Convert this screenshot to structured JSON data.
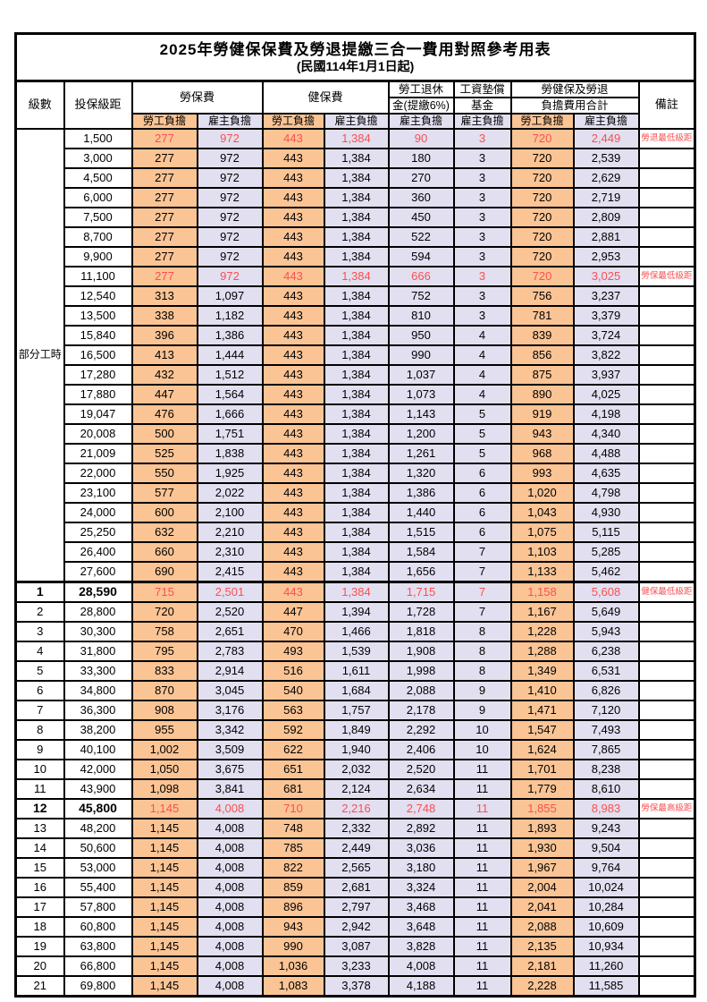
{
  "title": "2025年勞健保保費及勞退提繳三合一費用對照參考用表",
  "subtitle": "(民國114年1月1日起)",
  "header": {
    "level": "級數",
    "bracket": "投保級距",
    "labor_fee": "勞保費",
    "health_fee": "健保費",
    "pension_line1": "勞工退休",
    "pension_line2": "金(提繳6%)",
    "fund_line1": "工資墊償",
    "fund_line2": "基金",
    "total_line1": "勞健保及勞退",
    "total_line2": "負擔費用合計",
    "remark": "備註",
    "employee": "勞工負擔",
    "employer": "雇主負擔"
  },
  "part_time_label": "部分工時",
  "part_time_row_count": 23,
  "colors": {
    "employee_bg": "#FAC495",
    "employer_bg": "#E2DFF0",
    "highlight_text": "#FA5050",
    "border": "#000000"
  },
  "rows": [
    {
      "level": "",
      "bracket": "1,500",
      "labor_emp": "277",
      "labor_er": "972",
      "health_emp": "443",
      "health_er": "1,384",
      "pension": "90",
      "fund": "3",
      "total_emp": "720",
      "total_er": "2,449",
      "remark": "勞退最低級距",
      "highlight": true,
      "bold": false
    },
    {
      "level": "",
      "bracket": "3,000",
      "labor_emp": "277",
      "labor_er": "972",
      "health_emp": "443",
      "health_er": "1,384",
      "pension": "180",
      "fund": "3",
      "total_emp": "720",
      "total_er": "2,539",
      "remark": "",
      "highlight": false,
      "bold": false
    },
    {
      "level": "",
      "bracket": "4,500",
      "labor_emp": "277",
      "labor_er": "972",
      "health_emp": "443",
      "health_er": "1,384",
      "pension": "270",
      "fund": "3",
      "total_emp": "720",
      "total_er": "2,629",
      "remark": "",
      "highlight": false,
      "bold": false
    },
    {
      "level": "",
      "bracket": "6,000",
      "labor_emp": "277",
      "labor_er": "972",
      "health_emp": "443",
      "health_er": "1,384",
      "pension": "360",
      "fund": "3",
      "total_emp": "720",
      "total_er": "2,719",
      "remark": "",
      "highlight": false,
      "bold": false
    },
    {
      "level": "",
      "bracket": "7,500",
      "labor_emp": "277",
      "labor_er": "972",
      "health_emp": "443",
      "health_er": "1,384",
      "pension": "450",
      "fund": "3",
      "total_emp": "720",
      "total_er": "2,809",
      "remark": "",
      "highlight": false,
      "bold": false
    },
    {
      "level": "",
      "bracket": "8,700",
      "labor_emp": "277",
      "labor_er": "972",
      "health_emp": "443",
      "health_er": "1,384",
      "pension": "522",
      "fund": "3",
      "total_emp": "720",
      "total_er": "2,881",
      "remark": "",
      "highlight": false,
      "bold": false
    },
    {
      "level": "",
      "bracket": "9,900",
      "labor_emp": "277",
      "labor_er": "972",
      "health_emp": "443",
      "health_er": "1,384",
      "pension": "594",
      "fund": "3",
      "total_emp": "720",
      "total_er": "2,953",
      "remark": "",
      "highlight": false,
      "bold": false
    },
    {
      "level": "",
      "bracket": "11,100",
      "labor_emp": "277",
      "labor_er": "972",
      "health_emp": "443",
      "health_er": "1,384",
      "pension": "666",
      "fund": "3",
      "total_emp": "720",
      "total_er": "3,025",
      "remark": "勞保最低級距",
      "highlight": true,
      "bold": false
    },
    {
      "level": "",
      "bracket": "12,540",
      "labor_emp": "313",
      "labor_er": "1,097",
      "health_emp": "443",
      "health_er": "1,384",
      "pension": "752",
      "fund": "3",
      "total_emp": "756",
      "total_er": "3,237",
      "remark": "",
      "highlight": false,
      "bold": false
    },
    {
      "level": "",
      "bracket": "13,500",
      "labor_emp": "338",
      "labor_er": "1,182",
      "health_emp": "443",
      "health_er": "1,384",
      "pension": "810",
      "fund": "3",
      "total_emp": "781",
      "total_er": "3,379",
      "remark": "",
      "highlight": false,
      "bold": false
    },
    {
      "level": "",
      "bracket": "15,840",
      "labor_emp": "396",
      "labor_er": "1,386",
      "health_emp": "443",
      "health_er": "1,384",
      "pension": "950",
      "fund": "4",
      "total_emp": "839",
      "total_er": "3,724",
      "remark": "",
      "highlight": false,
      "bold": false
    },
    {
      "level": "",
      "bracket": "16,500",
      "labor_emp": "413",
      "labor_er": "1,444",
      "health_emp": "443",
      "health_er": "1,384",
      "pension": "990",
      "fund": "4",
      "total_emp": "856",
      "total_er": "3,822",
      "remark": "",
      "highlight": false,
      "bold": false
    },
    {
      "level": "",
      "bracket": "17,280",
      "labor_emp": "432",
      "labor_er": "1,512",
      "health_emp": "443",
      "health_er": "1,384",
      "pension": "1,037",
      "fund": "4",
      "total_emp": "875",
      "total_er": "3,937",
      "remark": "",
      "highlight": false,
      "bold": false
    },
    {
      "level": "",
      "bracket": "17,880",
      "labor_emp": "447",
      "labor_er": "1,564",
      "health_emp": "443",
      "health_er": "1,384",
      "pension": "1,073",
      "fund": "4",
      "total_emp": "890",
      "total_er": "4,025",
      "remark": "",
      "highlight": false,
      "bold": false
    },
    {
      "level": "",
      "bracket": "19,047",
      "labor_emp": "476",
      "labor_er": "1,666",
      "health_emp": "443",
      "health_er": "1,384",
      "pension": "1,143",
      "fund": "5",
      "total_emp": "919",
      "total_er": "4,198",
      "remark": "",
      "highlight": false,
      "bold": false
    },
    {
      "level": "",
      "bracket": "20,008",
      "labor_emp": "500",
      "labor_er": "1,751",
      "health_emp": "443",
      "health_er": "1,384",
      "pension": "1,200",
      "fund": "5",
      "total_emp": "943",
      "total_er": "4,340",
      "remark": "",
      "highlight": false,
      "bold": false
    },
    {
      "level": "",
      "bracket": "21,009",
      "labor_emp": "525",
      "labor_er": "1,838",
      "health_emp": "443",
      "health_er": "1,384",
      "pension": "1,261",
      "fund": "5",
      "total_emp": "968",
      "total_er": "4,488",
      "remark": "",
      "highlight": false,
      "bold": false
    },
    {
      "level": "",
      "bracket": "22,000",
      "labor_emp": "550",
      "labor_er": "1,925",
      "health_emp": "443",
      "health_er": "1,384",
      "pension": "1,320",
      "fund": "6",
      "total_emp": "993",
      "total_er": "4,635",
      "remark": "",
      "highlight": false,
      "bold": false
    },
    {
      "level": "",
      "bracket": "23,100",
      "labor_emp": "577",
      "labor_er": "2,022",
      "health_emp": "443",
      "health_er": "1,384",
      "pension": "1,386",
      "fund": "6",
      "total_emp": "1,020",
      "total_er": "4,798",
      "remark": "",
      "highlight": false,
      "bold": false
    },
    {
      "level": "",
      "bracket": "24,000",
      "labor_emp": "600",
      "labor_er": "2,100",
      "health_emp": "443",
      "health_er": "1,384",
      "pension": "1,440",
      "fund": "6",
      "total_emp": "1,043",
      "total_er": "4,930",
      "remark": "",
      "highlight": false,
      "bold": false
    },
    {
      "level": "",
      "bracket": "25,250",
      "labor_emp": "632",
      "labor_er": "2,210",
      "health_emp": "443",
      "health_er": "1,384",
      "pension": "1,515",
      "fund": "6",
      "total_emp": "1,075",
      "total_er": "5,115",
      "remark": "",
      "highlight": false,
      "bold": false
    },
    {
      "level": "",
      "bracket": "26,400",
      "labor_emp": "660",
      "labor_er": "2,310",
      "health_emp": "443",
      "health_er": "1,384",
      "pension": "1,584",
      "fund": "7",
      "total_emp": "1,103",
      "total_er": "5,285",
      "remark": "",
      "highlight": false,
      "bold": false
    },
    {
      "level": "",
      "bracket": "27,600",
      "labor_emp": "690",
      "labor_er": "2,415",
      "health_emp": "443",
      "health_er": "1,384",
      "pension": "1,656",
      "fund": "7",
      "total_emp": "1,133",
      "total_er": "5,462",
      "remark": "",
      "highlight": false,
      "bold": false
    },
    {
      "level": "1",
      "bracket": "28,590",
      "labor_emp": "715",
      "labor_er": "2,501",
      "health_emp": "443",
      "health_er": "1,384",
      "pension": "1,715",
      "fund": "7",
      "total_emp": "1,158",
      "total_er": "5,608",
      "remark": "健保最低級距",
      "highlight": true,
      "bold": true
    },
    {
      "level": "2",
      "bracket": "28,800",
      "labor_emp": "720",
      "labor_er": "2,520",
      "health_emp": "447",
      "health_er": "1,394",
      "pension": "1,728",
      "fund": "7",
      "total_emp": "1,167",
      "total_er": "5,649",
      "remark": "",
      "highlight": false,
      "bold": false
    },
    {
      "level": "3",
      "bracket": "30,300",
      "labor_emp": "758",
      "labor_er": "2,651",
      "health_emp": "470",
      "health_er": "1,466",
      "pension": "1,818",
      "fund": "8",
      "total_emp": "1,228",
      "total_er": "5,943",
      "remark": "",
      "highlight": false,
      "bold": false
    },
    {
      "level": "4",
      "bracket": "31,800",
      "labor_emp": "795",
      "labor_er": "2,783",
      "health_emp": "493",
      "health_er": "1,539",
      "pension": "1,908",
      "fund": "8",
      "total_emp": "1,288",
      "total_er": "6,238",
      "remark": "",
      "highlight": false,
      "bold": false
    },
    {
      "level": "5",
      "bracket": "33,300",
      "labor_emp": "833",
      "labor_er": "2,914",
      "health_emp": "516",
      "health_er": "1,611",
      "pension": "1,998",
      "fund": "8",
      "total_emp": "1,349",
      "total_er": "6,531",
      "remark": "",
      "highlight": false,
      "bold": false
    },
    {
      "level": "6",
      "bracket": "34,800",
      "labor_emp": "870",
      "labor_er": "3,045",
      "health_emp": "540",
      "health_er": "1,684",
      "pension": "2,088",
      "fund": "9",
      "total_emp": "1,410",
      "total_er": "6,826",
      "remark": "",
      "highlight": false,
      "bold": false
    },
    {
      "level": "7",
      "bracket": "36,300",
      "labor_emp": "908",
      "labor_er": "3,176",
      "health_emp": "563",
      "health_er": "1,757",
      "pension": "2,178",
      "fund": "9",
      "total_emp": "1,471",
      "total_er": "7,120",
      "remark": "",
      "highlight": false,
      "bold": false
    },
    {
      "level": "8",
      "bracket": "38,200",
      "labor_emp": "955",
      "labor_er": "3,342",
      "health_emp": "592",
      "health_er": "1,849",
      "pension": "2,292",
      "fund": "10",
      "total_emp": "1,547",
      "total_er": "7,493",
      "remark": "",
      "highlight": false,
      "bold": false
    },
    {
      "level": "9",
      "bracket": "40,100",
      "labor_emp": "1,002",
      "labor_er": "3,509",
      "health_emp": "622",
      "health_er": "1,940",
      "pension": "2,406",
      "fund": "10",
      "total_emp": "1,624",
      "total_er": "7,865",
      "remark": "",
      "highlight": false,
      "bold": false
    },
    {
      "level": "10",
      "bracket": "42,000",
      "labor_emp": "1,050",
      "labor_er": "3,675",
      "health_emp": "651",
      "health_er": "2,032",
      "pension": "2,520",
      "fund": "11",
      "total_emp": "1,701",
      "total_er": "8,238",
      "remark": "",
      "highlight": false,
      "bold": false
    },
    {
      "level": "11",
      "bracket": "43,900",
      "labor_emp": "1,098",
      "labor_er": "3,841",
      "health_emp": "681",
      "health_er": "2,124",
      "pension": "2,634",
      "fund": "11",
      "total_emp": "1,779",
      "total_er": "8,610",
      "remark": "",
      "highlight": false,
      "bold": false
    },
    {
      "level": "12",
      "bracket": "45,800",
      "labor_emp": "1,145",
      "labor_er": "4,008",
      "health_emp": "710",
      "health_er": "2,216",
      "pension": "2,748",
      "fund": "11",
      "total_emp": "1,855",
      "total_er": "8,983",
      "remark": "勞保最高級距",
      "highlight": true,
      "bold": true
    },
    {
      "level": "13",
      "bracket": "48,200",
      "labor_emp": "1,145",
      "labor_er": "4,008",
      "health_emp": "748",
      "health_er": "2,332",
      "pension": "2,892",
      "fund": "11",
      "total_emp": "1,893",
      "total_er": "9,243",
      "remark": "",
      "highlight": false,
      "bold": false
    },
    {
      "level": "14",
      "bracket": "50,600",
      "labor_emp": "1,145",
      "labor_er": "4,008",
      "health_emp": "785",
      "health_er": "2,449",
      "pension": "3,036",
      "fund": "11",
      "total_emp": "1,930",
      "total_er": "9,504",
      "remark": "",
      "highlight": false,
      "bold": false
    },
    {
      "level": "15",
      "bracket": "53,000",
      "labor_emp": "1,145",
      "labor_er": "4,008",
      "health_emp": "822",
      "health_er": "2,565",
      "pension": "3,180",
      "fund": "11",
      "total_emp": "1,967",
      "total_er": "9,764",
      "remark": "",
      "highlight": false,
      "bold": false
    },
    {
      "level": "16",
      "bracket": "55,400",
      "labor_emp": "1,145",
      "labor_er": "4,008",
      "health_emp": "859",
      "health_er": "2,681",
      "pension": "3,324",
      "fund": "11",
      "total_emp": "2,004",
      "total_er": "10,024",
      "remark": "",
      "highlight": false,
      "bold": false
    },
    {
      "level": "17",
      "bracket": "57,800",
      "labor_emp": "1,145",
      "labor_er": "4,008",
      "health_emp": "896",
      "health_er": "2,797",
      "pension": "3,468",
      "fund": "11",
      "total_emp": "2,041",
      "total_er": "10,284",
      "remark": "",
      "highlight": false,
      "bold": false
    },
    {
      "level": "18",
      "bracket": "60,800",
      "labor_emp": "1,145",
      "labor_er": "4,008",
      "health_emp": "943",
      "health_er": "2,942",
      "pension": "3,648",
      "fund": "11",
      "total_emp": "2,088",
      "total_er": "10,609",
      "remark": "",
      "highlight": false,
      "bold": false
    },
    {
      "level": "19",
      "bracket": "63,800",
      "labor_emp": "1,145",
      "labor_er": "4,008",
      "health_emp": "990",
      "health_er": "3,087",
      "pension": "3,828",
      "fund": "11",
      "total_emp": "2,135",
      "total_er": "10,934",
      "remark": "",
      "highlight": false,
      "bold": false
    },
    {
      "level": "20",
      "bracket": "66,800",
      "labor_emp": "1,145",
      "labor_er": "4,008",
      "health_emp": "1,036",
      "health_er": "3,233",
      "pension": "4,008",
      "fund": "11",
      "total_emp": "2,181",
      "total_er": "11,260",
      "remark": "",
      "highlight": false,
      "bold": false
    },
    {
      "level": "21",
      "bracket": "69,800",
      "labor_emp": "1,145",
      "labor_er": "4,008",
      "health_emp": "1,083",
      "health_er": "3,378",
      "pension": "4,188",
      "fund": "11",
      "total_emp": "2,228",
      "total_er": "11,585",
      "remark": "",
      "highlight": false,
      "bold": false
    }
  ]
}
